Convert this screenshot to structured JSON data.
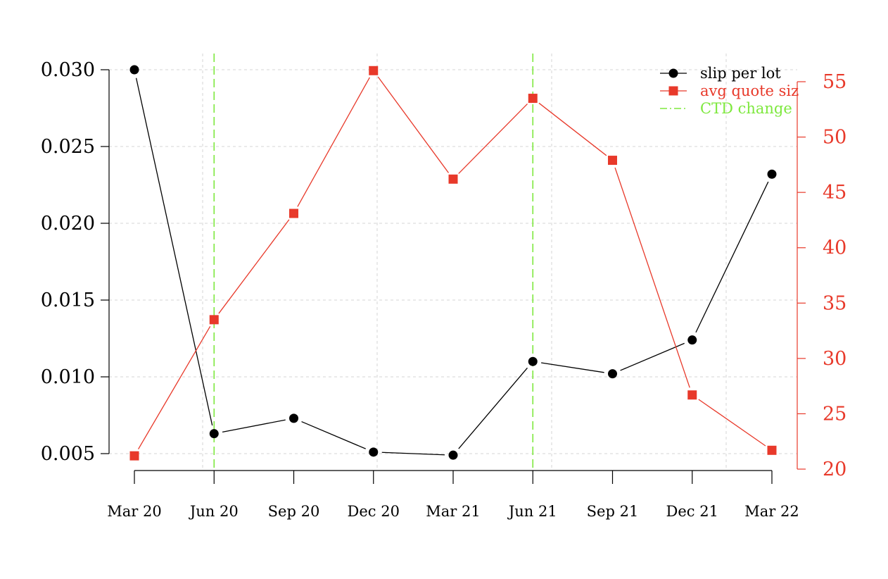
{
  "chart_data": {
    "type": "line",
    "title": "",
    "xlabel": "",
    "ylabel": "",
    "y2label": "",
    "categories": [
      "Mar 20",
      "Jun 20",
      "Sep 20",
      "Dec 20",
      "Mar 21",
      "Jun 21",
      "Sep 21",
      "Dec 21",
      "Mar 22"
    ],
    "series": [
      {
        "name": "slip per lot",
        "axis": "left",
        "color": "#000000",
        "marker": "circle",
        "values": [
          0.03,
          0.0063,
          0.0073,
          0.0051,
          0.0049,
          0.011,
          0.0102,
          0.0124,
          0.0232
        ]
      },
      {
        "name": "avg quote size",
        "axis": "right",
        "color": "#e8392a",
        "marker": "square",
        "values": [
          21.2,
          33.5,
          43.1,
          56.0,
          46.2,
          53.5,
          47.9,
          26.7,
          21.7
        ]
      }
    ],
    "event_lines": {
      "name": "CTD change",
      "color": "#7ee83e",
      "style": "dashed",
      "positions": [
        "Jun 20",
        "Jun 21"
      ]
    },
    "y_left": {
      "ticks": [
        0.005,
        0.01,
        0.015,
        0.02,
        0.025,
        0.03
      ],
      "tick_labels": [
        "0.005",
        "0.010",
        "0.015",
        "0.020",
        "0.025",
        "0.030"
      ],
      "range": [
        0.005,
        0.03
      ]
    },
    "y_right": {
      "ticks": [
        20,
        25,
        30,
        35,
        40,
        45,
        50,
        55
      ],
      "tick_labels": [
        "20",
        "25",
        "30",
        "35",
        "40",
        "45",
        "50",
        "55"
      ],
      "range": [
        20,
        55
      ],
      "color": "#e8392a"
    },
    "grid": true,
    "legend": {
      "position": "top-right",
      "entries": [
        {
          "label": "slip per lot",
          "color": "#000000",
          "symbol": "circle"
        },
        {
          "label": "avg quote size",
          "color": "#e8392a",
          "symbol": "square"
        },
        {
          "label": "CTD change",
          "color": "#7ee83e",
          "symbol": "dashdot"
        }
      ]
    }
  }
}
